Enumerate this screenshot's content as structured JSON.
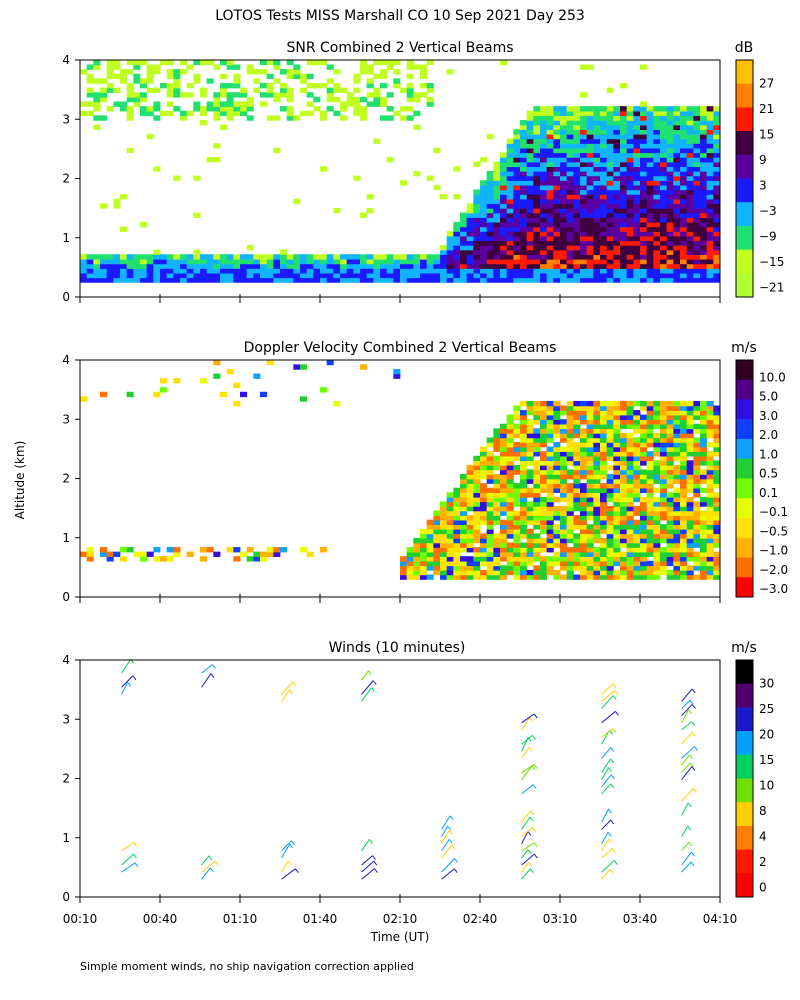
{
  "title": "LOTOS Tests MISS Marshall CO  10 Sep 2021 Day 253",
  "footnote": "Simple moment winds, no ship navigation correction applied",
  "shared_y_label": "Altitude (km)",
  "chart_data": [
    {
      "type": "heatmap",
      "title": "SNR Combined 2 Vertical Beams",
      "units": "dB",
      "ylim": [
        0,
        4
      ],
      "y_ticks": [
        "0",
        "1",
        "2",
        "3",
        "4"
      ],
      "colorbar_labels": [
        "27",
        "21",
        "15",
        "9",
        "3",
        "−3",
        "−9",
        "−15",
        "−21"
      ],
      "colorbar_values": [
        27,
        21,
        15,
        9,
        3,
        -3,
        -9,
        -15,
        -21
      ],
      "colorbar_colors": [
        "#ffc000",
        "#ff7f00",
        "#ff1a00",
        "#400040",
        "#5a00a0",
        "#1a1aff",
        "#12b4ff",
        "#20e070",
        "#c0ff20",
        "#b0ff30"
      ]
    },
    {
      "type": "heatmap",
      "title": "Doppler Velocity Combined 2 Vertical Beams",
      "units": "m/s",
      "ylim": [
        0,
        4
      ],
      "y_ticks": [
        "0",
        "1",
        "2",
        "3",
        "4"
      ],
      "colorbar_labels": [
        "10.0",
        "5.0",
        "3.0",
        "2.0",
        "1.0",
        "0.5",
        "0.1",
        "−0.1",
        "−0.5",
        "−1.0",
        "−2.0",
        "−3.0"
      ],
      "colorbar_values": [
        10,
        5,
        3,
        2,
        1,
        0.5,
        0.1,
        -0.1,
        -0.5,
        -1,
        -2,
        -3
      ],
      "colorbar_colors": [
        "#300020",
        "#50008a",
        "#3010e0",
        "#1040ff",
        "#10a0ff",
        "#20d030",
        "#70ff00",
        "#e8ff00",
        "#ffe000",
        "#ffb000",
        "#ff7000",
        "#ff0000"
      ]
    },
    {
      "type": "scatter",
      "title": "Winds (10 minutes)",
      "units": "m/s",
      "ylim": [
        0,
        4
      ],
      "y_ticks": [
        "0",
        "1",
        "2",
        "3",
        "4"
      ],
      "xlabel": "Time (UT)",
      "x_ticks": [
        "00:10",
        "00:40",
        "01:10",
        "01:40",
        "02:10",
        "02:40",
        "03:10",
        "03:40",
        "04:10"
      ],
      "colorbar_labels": [
        "30",
        "25",
        "20",
        "15",
        "10",
        "8",
        "4",
        "2",
        "0"
      ],
      "colorbar_values": [
        30,
        25,
        20,
        15,
        10,
        8,
        4,
        2,
        0
      ],
      "colorbar_colors": [
        "#000000",
        "#50006a",
        "#1a1acc",
        "#00a0ff",
        "#00d060",
        "#70e000",
        "#ffd000",
        "#ff8000",
        "#ff1a00",
        "#ff0000"
      ]
    }
  ]
}
